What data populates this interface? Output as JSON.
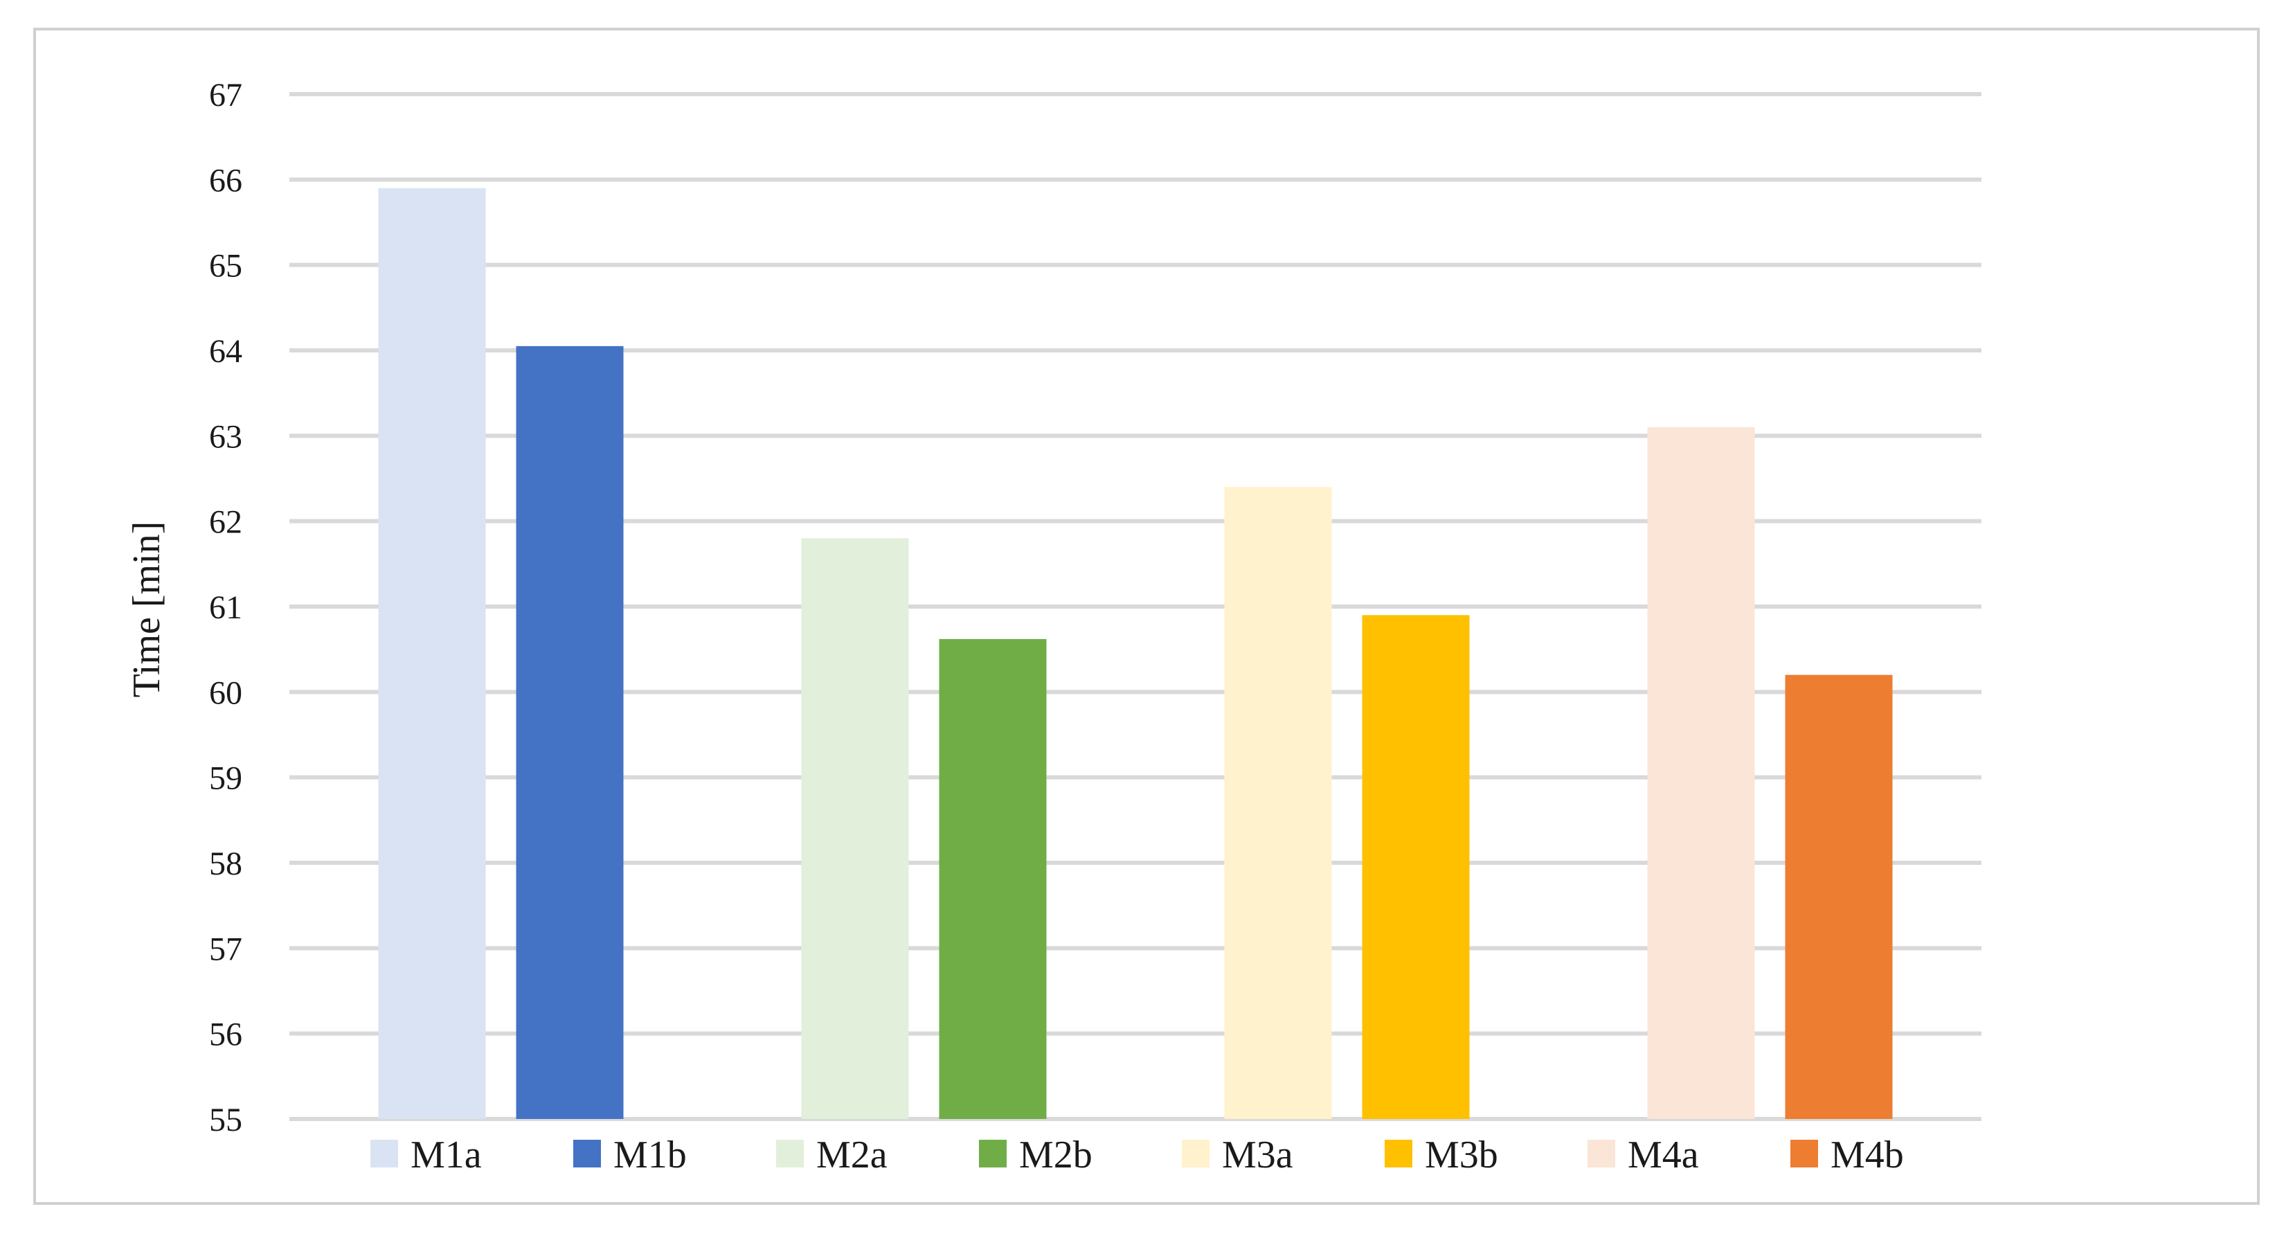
{
  "chart_data": {
    "type": "bar",
    "title": "",
    "xlabel": "",
    "ylabel": "Time [min]",
    "ylim": [
      55,
      67
    ],
    "yticks": [
      55,
      56,
      57,
      58,
      59,
      60,
      61,
      62,
      63,
      64,
      65,
      66,
      67
    ],
    "grid": true,
    "legend_position": "bottom",
    "categories": [
      "M1a",
      "M1b",
      "M2a",
      "M2b",
      "M3a",
      "M3b",
      "M4a",
      "M4b"
    ],
    "series": [
      {
        "name": "M1a",
        "value": 65.9,
        "color": "#dae3f3"
      },
      {
        "name": "M1b",
        "value": 64.05,
        "color": "#4472c4"
      },
      {
        "name": "M2a",
        "value": 61.8,
        "color": "#e2efda"
      },
      {
        "name": "M2b",
        "value": 60.62,
        "color": "#70ad47"
      },
      {
        "name": "M3a",
        "value": 62.4,
        "color": "#fff2cc"
      },
      {
        "name": "M3b",
        "value": 60.9,
        "color": "#ffc000"
      },
      {
        "name": "M4a",
        "value": 63.1,
        "color": "#fbe5d6"
      },
      {
        "name": "M4b",
        "value": 60.2,
        "color": "#ed7d31"
      }
    ]
  }
}
